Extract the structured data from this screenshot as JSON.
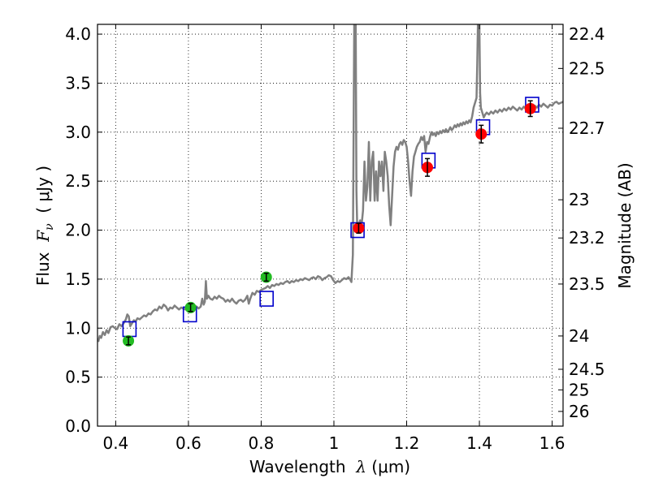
{
  "chart_data": {
    "type": "scatter",
    "xlabel": {
      "prefix": "Wavelength  ",
      "symbol": "λ",
      "suffix": " (μm)"
    },
    "ylabel": {
      "prefix": "Flux  ",
      "symbol": "F",
      "subscript": "ν",
      "suffix": "  ( μJy )"
    },
    "ylabel_right": "Magnitude (AB)",
    "xlim": [
      0.35,
      1.63
    ],
    "ylim": [
      0.0,
      4.1
    ],
    "x_ticks": [
      {
        "value": 0.4,
        "label": "0.4"
      },
      {
        "value": 0.6,
        "label": "0.6"
      },
      {
        "value": 0.8,
        "label": "0.8"
      },
      {
        "value": 1.0,
        "label": "1"
      },
      {
        "value": 1.2,
        "label": "1.2"
      },
      {
        "value": 1.4,
        "label": "1.4"
      },
      {
        "value": 1.6,
        "label": "1.6"
      }
    ],
    "y_ticks": [
      {
        "value": 0.0,
        "label": "0.0"
      },
      {
        "value": 0.5,
        "label": "0.5"
      },
      {
        "value": 1.0,
        "label": "1.0"
      },
      {
        "value": 1.5,
        "label": "1.5"
      },
      {
        "value": 2.0,
        "label": "2.0"
      },
      {
        "value": 2.5,
        "label": "2.5"
      },
      {
        "value": 3.0,
        "label": "3.0"
      },
      {
        "value": 3.5,
        "label": "3.5"
      },
      {
        "value": 4.0,
        "label": "4.0"
      }
    ],
    "mag_ticks": [
      {
        "label": "22.4",
        "flux": 4.0
      },
      {
        "label": "22.5",
        "flux": 3.65
      },
      {
        "label": "22.7",
        "flux": 3.04
      },
      {
        "label": "23",
        "flux": 2.31
      },
      {
        "label": "23.2",
        "flux": 1.92
      },
      {
        "label": "23.5",
        "flux": 1.45
      },
      {
        "label": "24",
        "flux": 0.92
      },
      {
        "label": "24.5",
        "flux": 0.58
      },
      {
        "label": "25",
        "flux": 0.37
      },
      {
        "label": "26",
        "flux": 0.15
      }
    ],
    "grid": true,
    "colors": {
      "spectrum": "#808080",
      "model_box": "#0000cc",
      "optical_points": "#22bb22",
      "nir_points": "#ff0000",
      "error_bar": "#000000"
    },
    "series": [
      {
        "kind": "line",
        "points": [
          [
            0.352,
            0.86
          ],
          [
            0.356,
            0.92
          ],
          [
            0.36,
            0.9
          ],
          [
            0.365,
            0.96
          ],
          [
            0.37,
            0.93
          ],
          [
            0.375,
            0.98
          ],
          [
            0.38,
            0.95
          ],
          [
            0.386,
            1.01
          ],
          [
            0.392,
            1.02
          ],
          [
            0.398,
            1.0
          ],
          [
            0.404,
            0.99
          ],
          [
            0.41,
            1.04
          ],
          [
            0.416,
            1.02
          ],
          [
            0.422,
            1.05
          ],
          [
            0.428,
            1.09
          ],
          [
            0.432,
            1.14
          ],
          [
            0.436,
            1.12
          ],
          [
            0.44,
            1.02
          ],
          [
            0.445,
            1.05
          ],
          [
            0.45,
            1.08
          ],
          [
            0.455,
            1.07
          ],
          [
            0.46,
            1.1
          ],
          [
            0.466,
            1.09
          ],
          [
            0.472,
            1.11
          ],
          [
            0.478,
            1.13
          ],
          [
            0.484,
            1.12
          ],
          [
            0.49,
            1.15
          ],
          [
            0.496,
            1.14
          ],
          [
            0.502,
            1.17
          ],
          [
            0.508,
            1.19
          ],
          [
            0.514,
            1.18
          ],
          [
            0.52,
            1.22
          ],
          [
            0.526,
            1.2
          ],
          [
            0.532,
            1.24
          ],
          [
            0.538,
            1.22
          ],
          [
            0.544,
            1.18
          ],
          [
            0.55,
            1.21
          ],
          [
            0.556,
            1.2
          ],
          [
            0.562,
            1.23
          ],
          [
            0.568,
            1.21
          ],
          [
            0.574,
            1.19
          ],
          [
            0.58,
            1.21
          ],
          [
            0.586,
            1.2
          ],
          [
            0.592,
            1.19
          ],
          [
            0.598,
            1.22
          ],
          [
            0.604,
            1.2
          ],
          [
            0.61,
            1.21
          ],
          [
            0.616,
            1.23
          ],
          [
            0.622,
            1.22
          ],
          [
            0.628,
            1.2
          ],
          [
            0.634,
            1.22
          ],
          [
            0.638,
            1.3
          ],
          [
            0.642,
            1.24
          ],
          [
            0.645,
            1.27
          ],
          [
            0.648,
            1.48
          ],
          [
            0.651,
            1.3
          ],
          [
            0.655,
            1.33
          ],
          [
            0.66,
            1.3
          ],
          [
            0.666,
            1.29
          ],
          [
            0.672,
            1.32
          ],
          [
            0.678,
            1.3
          ],
          [
            0.684,
            1.33
          ],
          [
            0.69,
            1.31
          ],
          [
            0.696,
            1.3
          ],
          [
            0.702,
            1.27
          ],
          [
            0.708,
            1.29
          ],
          [
            0.714,
            1.27
          ],
          [
            0.72,
            1.3
          ],
          [
            0.726,
            1.27
          ],
          [
            0.732,
            1.25
          ],
          [
            0.738,
            1.28
          ],
          [
            0.744,
            1.29
          ],
          [
            0.75,
            1.27
          ],
          [
            0.756,
            1.29
          ],
          [
            0.762,
            1.33
          ],
          [
            0.766,
            1.25
          ],
          [
            0.77,
            1.3
          ],
          [
            0.776,
            1.36
          ],
          [
            0.782,
            1.34
          ],
          [
            0.788,
            1.38
          ],
          [
            0.794,
            1.37
          ],
          [
            0.8,
            1.39
          ],
          [
            0.806,
            1.4
          ],
          [
            0.812,
            1.41
          ],
          [
            0.818,
            1.43
          ],
          [
            0.824,
            1.41
          ],
          [
            0.83,
            1.44
          ],
          [
            0.836,
            1.43
          ],
          [
            0.842,
            1.45
          ],
          [
            0.848,
            1.44
          ],
          [
            0.854,
            1.46
          ],
          [
            0.86,
            1.45
          ],
          [
            0.866,
            1.47
          ],
          [
            0.872,
            1.48
          ],
          [
            0.878,
            1.46
          ],
          [
            0.884,
            1.48
          ],
          [
            0.89,
            1.47
          ],
          [
            0.896,
            1.49
          ],
          [
            0.902,
            1.48
          ],
          [
            0.908,
            1.5
          ],
          [
            0.914,
            1.49
          ],
          [
            0.92,
            1.51
          ],
          [
            0.926,
            1.5
          ],
          [
            0.932,
            1.49
          ],
          [
            0.938,
            1.51
          ],
          [
            0.944,
            1.52
          ],
          [
            0.95,
            1.5
          ],
          [
            0.956,
            1.53
          ],
          [
            0.962,
            1.52
          ],
          [
            0.968,
            1.49
          ],
          [
            0.974,
            1.51
          ],
          [
            0.98,
            1.52
          ],
          [
            0.986,
            1.54
          ],
          [
            0.992,
            1.53
          ],
          [
            0.998,
            1.49
          ],
          [
            1.004,
            1.46
          ],
          [
            1.01,
            1.48
          ],
          [
            1.016,
            1.47
          ],
          [
            1.022,
            1.49
          ],
          [
            1.028,
            1.51
          ],
          [
            1.034,
            1.5
          ],
          [
            1.04,
            1.52
          ],
          [
            1.044,
            1.5
          ],
          [
            1.048,
            1.47
          ],
          [
            1.052,
            1.75
          ],
          [
            1.054,
            3.0
          ],
          [
            1.056,
            4.1
          ],
          [
            1.06,
            4.1
          ],
          [
            1.062,
            2.4
          ],
          [
            1.064,
            2.05
          ],
          [
            1.068,
            2.05
          ],
          [
            1.072,
            2.1
          ],
          [
            1.076,
            2.05
          ],
          [
            1.08,
            2.2
          ],
          [
            1.084,
            2.7
          ],
          [
            1.088,
            2.3
          ],
          [
            1.092,
            2.45
          ],
          [
            1.096,
            2.9
          ],
          [
            1.1,
            2.3
          ],
          [
            1.104,
            2.7
          ],
          [
            1.108,
            2.8
          ],
          [
            1.112,
            2.3
          ],
          [
            1.116,
            2.6
          ],
          [
            1.12,
            2.3
          ],
          [
            1.124,
            2.7
          ],
          [
            1.128,
            2.55
          ],
          [
            1.132,
            2.7
          ],
          [
            1.136,
            2.4
          ],
          [
            1.14,
            2.8
          ],
          [
            1.144,
            2.7
          ],
          [
            1.148,
            2.55
          ],
          [
            1.152,
            2.25
          ],
          [
            1.156,
            2.05
          ],
          [
            1.16,
            2.35
          ],
          [
            1.164,
            2.65
          ],
          [
            1.168,
            2.8
          ],
          [
            1.172,
            2.85
          ],
          [
            1.176,
            2.82
          ],
          [
            1.18,
            2.88
          ],
          [
            1.184,
            2.9
          ],
          [
            1.188,
            2.87
          ],
          [
            1.192,
            2.92
          ],
          [
            1.196,
            2.9
          ],
          [
            1.2,
            2.85
          ],
          [
            1.204,
            2.7
          ],
          [
            1.208,
            2.5
          ],
          [
            1.212,
            2.35
          ],
          [
            1.216,
            2.6
          ],
          [
            1.22,
            2.75
          ],
          [
            1.224,
            2.8
          ],
          [
            1.228,
            2.85
          ],
          [
            1.232,
            2.88
          ],
          [
            1.236,
            2.9
          ],
          [
            1.24,
            2.95
          ],
          [
            1.244,
            2.92
          ],
          [
            1.248,
            2.96
          ],
          [
            1.252,
            2.8
          ],
          [
            1.256,
            2.9
          ],
          [
            1.26,
            2.88
          ],
          [
            1.264,
            2.95
          ],
          [
            1.268,
            3.0
          ],
          [
            1.272,
            2.97
          ],
          [
            1.276,
            2.99
          ],
          [
            1.28,
            2.96
          ],
          [
            1.284,
            3.0
          ],
          [
            1.288,
            2.98
          ],
          [
            1.292,
            3.01
          ],
          [
            1.296,
            2.99
          ],
          [
            1.3,
            3.02
          ],
          [
            1.304,
            3.0
          ],
          [
            1.308,
            3.03
          ],
          [
            1.312,
            3.0
          ],
          [
            1.316,
            3.02
          ],
          [
            1.32,
            3.05
          ],
          [
            1.324,
            3.02
          ],
          [
            1.328,
            3.04
          ],
          [
            1.332,
            3.07
          ],
          [
            1.336,
            3.05
          ],
          [
            1.34,
            3.08
          ],
          [
            1.344,
            3.06
          ],
          [
            1.348,
            3.09
          ],
          [
            1.352,
            3.07
          ],
          [
            1.356,
            3.1
          ],
          [
            1.36,
            3.08
          ],
          [
            1.364,
            3.11
          ],
          [
            1.368,
            3.09
          ],
          [
            1.372,
            3.12
          ],
          [
            1.376,
            3.1
          ],
          [
            1.38,
            3.16
          ],
          [
            1.384,
            3.25
          ],
          [
            1.388,
            3.3
          ],
          [
            1.392,
            3.35
          ],
          [
            1.394,
            3.7
          ],
          [
            1.396,
            4.1
          ],
          [
            1.4,
            4.1
          ],
          [
            1.402,
            3.4
          ],
          [
            1.404,
            3.25
          ],
          [
            1.408,
            3.2
          ],
          [
            1.412,
            3.15
          ],
          [
            1.416,
            3.18
          ],
          [
            1.42,
            3.2
          ],
          [
            1.426,
            3.18
          ],
          [
            1.432,
            3.21
          ],
          [
            1.438,
            3.19
          ],
          [
            1.444,
            3.22
          ],
          [
            1.45,
            3.2
          ],
          [
            1.456,
            3.23
          ],
          [
            1.462,
            3.21
          ],
          [
            1.468,
            3.24
          ],
          [
            1.474,
            3.22
          ],
          [
            1.48,
            3.25
          ],
          [
            1.486,
            3.23
          ],
          [
            1.492,
            3.26
          ],
          [
            1.498,
            3.24
          ],
          [
            1.504,
            3.22
          ],
          [
            1.51,
            3.25
          ],
          [
            1.516,
            3.23
          ],
          [
            1.522,
            3.26
          ],
          [
            1.528,
            3.24
          ],
          [
            1.534,
            3.27
          ],
          [
            1.54,
            3.25
          ],
          [
            1.546,
            3.28
          ],
          [
            1.552,
            3.27
          ],
          [
            1.558,
            3.25
          ],
          [
            1.564,
            3.28
          ],
          [
            1.57,
            3.26
          ],
          [
            1.576,
            3.29
          ],
          [
            1.582,
            3.27
          ],
          [
            1.588,
            3.25
          ],
          [
            1.594,
            3.28
          ],
          [
            1.6,
            3.27
          ],
          [
            1.606,
            3.3
          ],
          [
            1.612,
            3.31
          ],
          [
            1.618,
            3.29
          ],
          [
            1.624,
            3.3
          ],
          [
            1.63,
            3.31
          ]
        ]
      },
      {
        "kind": "squares",
        "points": [
          [
            0.438,
            0.99
          ],
          [
            0.604,
            1.14
          ],
          [
            0.815,
            1.3
          ],
          [
            1.065,
            2.0
          ],
          [
            1.26,
            2.71
          ],
          [
            1.41,
            3.05
          ],
          [
            1.545,
            3.28
          ]
        ]
      },
      {
        "kind": "points",
        "group": "optical",
        "points": [
          {
            "x": 0.435,
            "y": 0.87,
            "err": 0.04
          },
          {
            "x": 0.606,
            "y": 1.21,
            "err": 0.04
          },
          {
            "x": 0.814,
            "y": 1.52,
            "err": 0.04
          }
        ]
      },
      {
        "kind": "points",
        "group": "nir",
        "points": [
          {
            "x": 1.068,
            "y": 2.02,
            "err": 0.05
          },
          {
            "x": 1.257,
            "y": 2.64,
            "err": 0.09
          },
          {
            "x": 1.405,
            "y": 2.98,
            "err": 0.09
          },
          {
            "x": 1.54,
            "y": 3.24,
            "err": 0.08
          }
        ]
      }
    ]
  }
}
